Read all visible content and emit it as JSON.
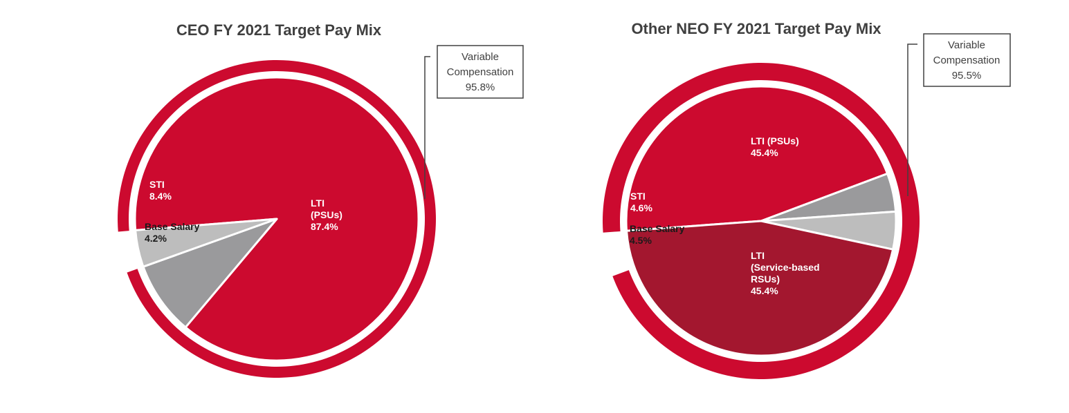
{
  "colors": {
    "red": "#CC0A2F",
    "dark_red": "#A3172F",
    "sti_gray": "#9A9A9C",
    "base_gray": "#BDBDBD",
    "white": "#FFFFFF",
    "title_text": "#404040"
  },
  "chart_data": [
    {
      "type": "pie",
      "title": "CEO FY 2021 Target Pay Mix",
      "slices": [
        {
          "name": "LTI (PSUs)",
          "label_lines": [
            "LTI",
            "(PSUs)",
            "87.4%"
          ],
          "value": 87.4,
          "color": "#CC0A2F",
          "text_color": "#FFFFFF"
        },
        {
          "name": "STI",
          "label_lines": [
            "STI",
            "8.4%"
          ],
          "value": 8.4,
          "color": "#9A9A9C",
          "text_color": "#FFFFFF"
        },
        {
          "name": "Base Salary",
          "label_lines": [
            "Base Salary",
            "4.2%"
          ],
          "value": 4.2,
          "color": "#BDBDBD",
          "text_color": "#1A1A1A"
        }
      ],
      "outer_ring": {
        "name": "Variable Compensation",
        "value": 95.8
      },
      "callout": {
        "lines": [
          "Variable",
          "Compensation",
          "95.8%"
        ]
      }
    },
    {
      "type": "pie",
      "title": "Other NEO FY 2021 Target Pay Mix",
      "slices": [
        {
          "name": "LTI (PSUs)",
          "label_lines": [
            "LTI (PSUs)",
            "45.4%"
          ],
          "value": 45.4,
          "color": "#CC0A2F",
          "text_color": "#FFFFFF"
        },
        {
          "name": "STI",
          "label_lines": [
            "STI",
            "4.6%"
          ],
          "value": 4.6,
          "color": "#9A9A9C",
          "text_color": "#FFFFFF"
        },
        {
          "name": "Base Salary",
          "label_lines": [
            "Base Salary",
            "4.5%"
          ],
          "value": 4.5,
          "color": "#BDBDBD",
          "text_color": "#1A1A1A"
        },
        {
          "name": "LTI (Service-based RSUs)",
          "label_lines": [
            "LTI",
            "(Service-based",
            "RSUs)",
            "45.4%"
          ],
          "value": 45.4,
          "color": "#A3172F",
          "text_color": "#FFFFFF"
        }
      ],
      "outer_ring": {
        "name": "Variable Compensation",
        "value": 95.5
      },
      "callout": {
        "lines": [
          "Variable",
          "Compensation",
          "95.5%"
        ]
      }
    }
  ]
}
